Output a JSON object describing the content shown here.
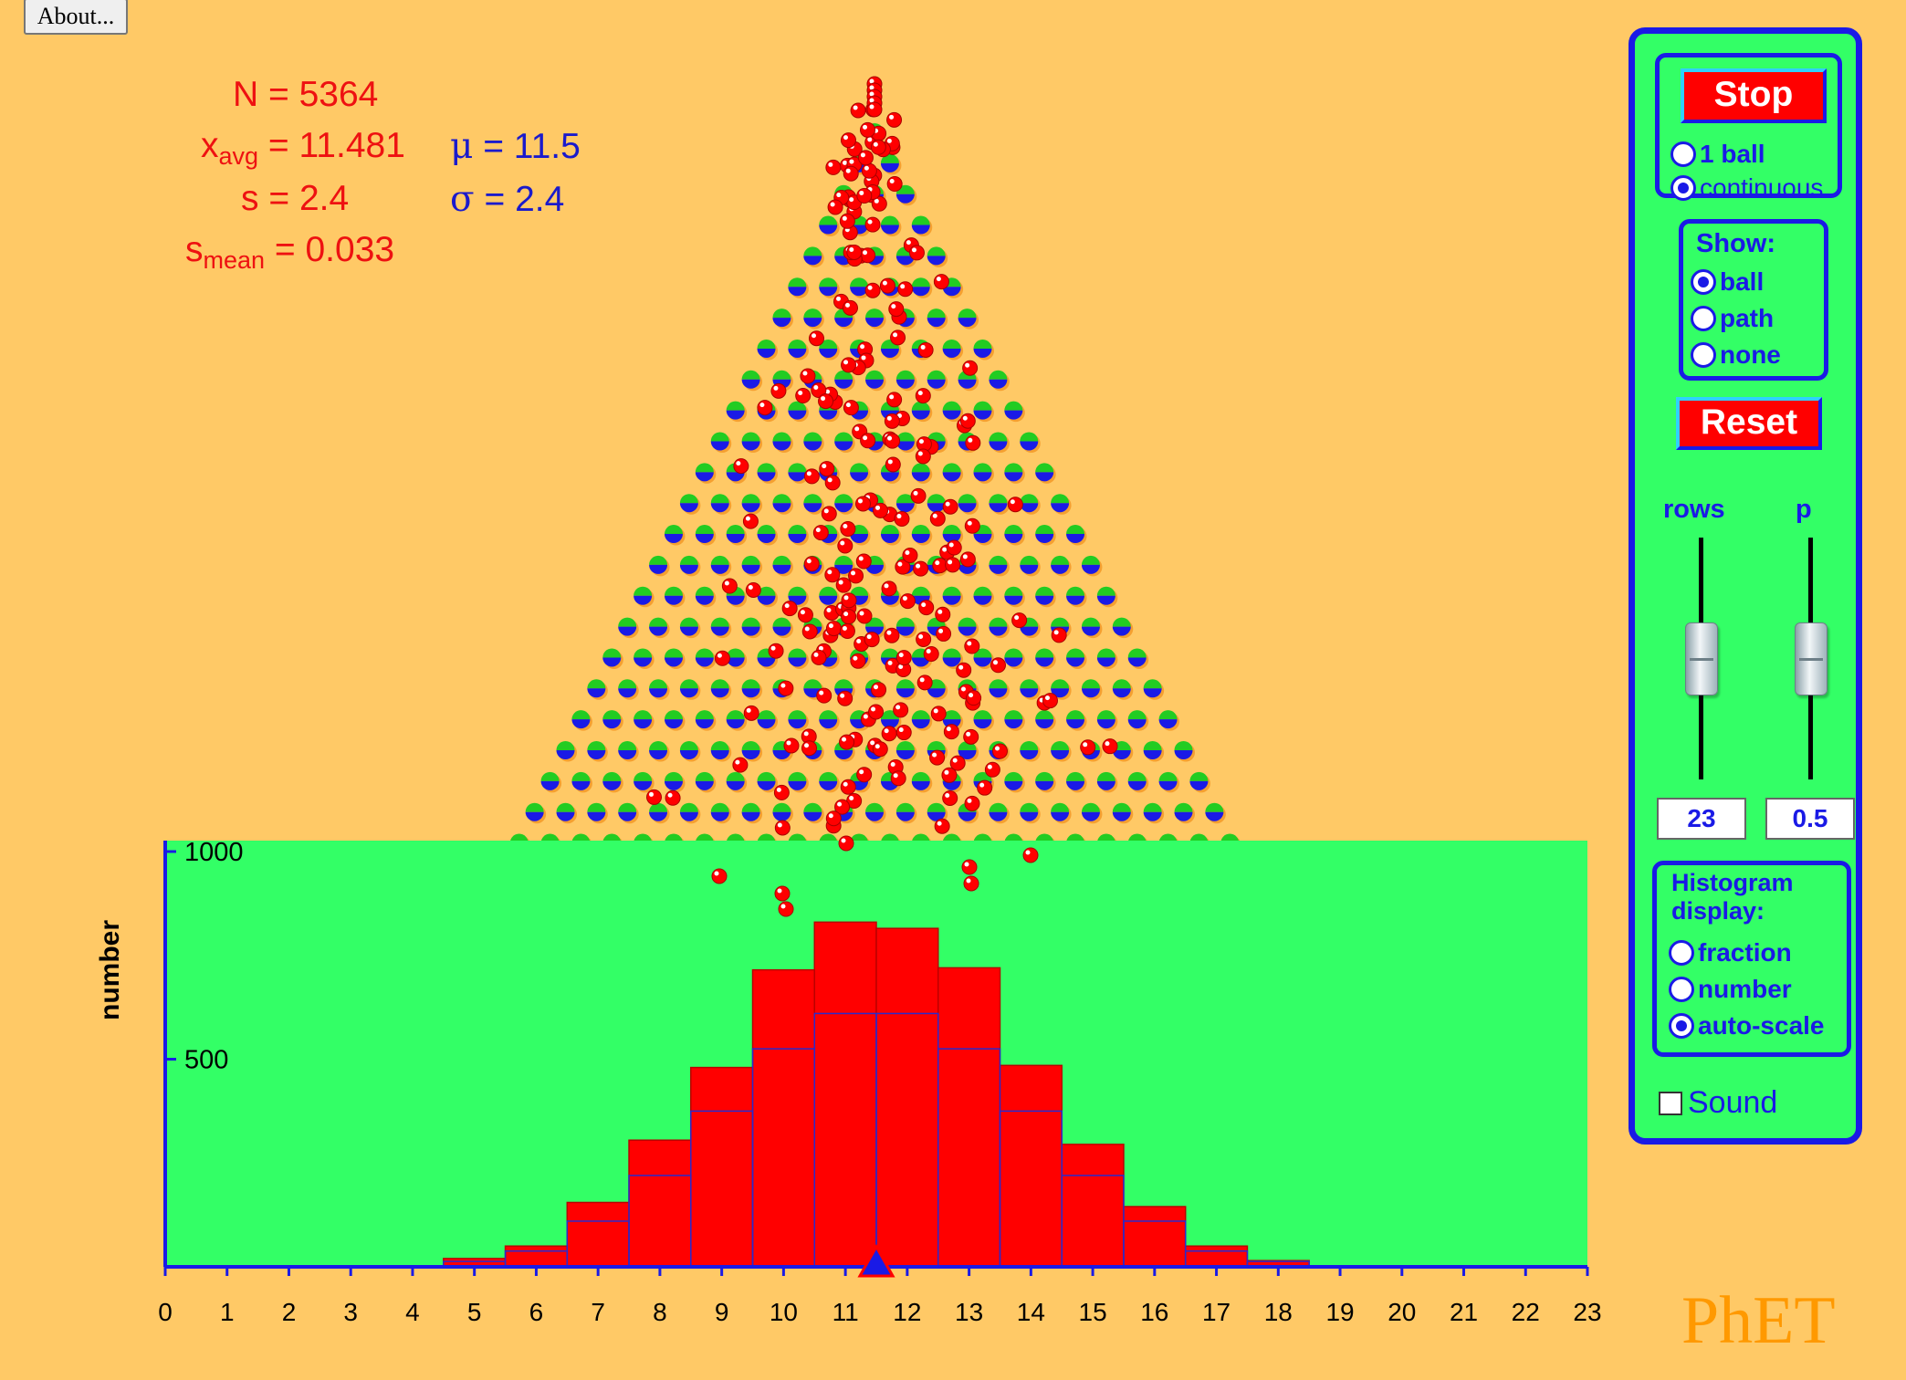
{
  "about_label": "About...",
  "stats": {
    "n": "N = 5364",
    "xavg_sym": "x",
    "xavg_sub": "avg",
    "xavg_val": " = 11.481",
    "mu_sym": "μ",
    "mu_val": " = 11.5",
    "s": "s = 2.4",
    "sigma_sym": "σ",
    "sigma_val": " = 2.4",
    "smean_sym": "s",
    "smean_sub": "mean",
    "smean_val": " = 0.033"
  },
  "controls": {
    "stop_label": "Stop",
    "mode_options": [
      "1 ball",
      "continuous"
    ],
    "mode_selected": "continuous",
    "show_title": "Show:",
    "show_options": [
      "ball",
      "path",
      "none"
    ],
    "show_selected": "ball",
    "reset_label": "Reset",
    "rows_label": "rows",
    "p_label": "p",
    "rows_value": "23",
    "p_value": "0.5",
    "rows_level": 0.5,
    "p_level": 0.5,
    "histogram_title_1": "Histogram",
    "histogram_title_2": "display:",
    "histogram_options": [
      "fraction",
      "number",
      "auto-scale"
    ],
    "histogram_selected": "auto-scale",
    "sound_label": "Sound",
    "sound_checked": false
  },
  "logo": "PhET",
  "chart_data": {
    "type": "bar",
    "ylabel": "number",
    "ylim": [
      0,
      1000
    ],
    "y_ticks": [
      "500",
      "1000"
    ],
    "categories": [
      0,
      1,
      2,
      3,
      4,
      5,
      6,
      7,
      8,
      9,
      10,
      11,
      12,
      13,
      14,
      15,
      16,
      17,
      18,
      19,
      20,
      21,
      22,
      23
    ],
    "x_ticks": [
      "0",
      "1",
      "2",
      "3",
      "4",
      "5",
      "6",
      "7",
      "8",
      "9",
      "10",
      "11",
      "12",
      "13",
      "14",
      "15",
      "16",
      "17",
      "18",
      "19",
      "20",
      "21",
      "22",
      "23"
    ],
    "series": [
      {
        "values": [
          0,
          0,
          0,
          0,
          0,
          20,
          50,
          155,
          305,
          480,
          715,
          830,
          815,
          720,
          485,
          295,
          145,
          50,
          15,
          0,
          0,
          0,
          0,
          0
        ]
      },
      {
        "values": [
          0,
          0,
          0,
          0,
          0,
          13,
          38,
          110,
          220,
          375,
          525,
          610,
          610,
          525,
          375,
          220,
          110,
          38,
          13,
          0,
          0,
          0,
          0,
          0
        ]
      }
    ],
    "mean_marker": 11.5,
    "colors": {
      "bar": "#ff0000",
      "background": "#33ff66",
      "axis": "#1a1ae6",
      "peg_top": "#22cc22",
      "peg_bottom": "#1a1ae6",
      "ball": "#ff0000"
    }
  }
}
